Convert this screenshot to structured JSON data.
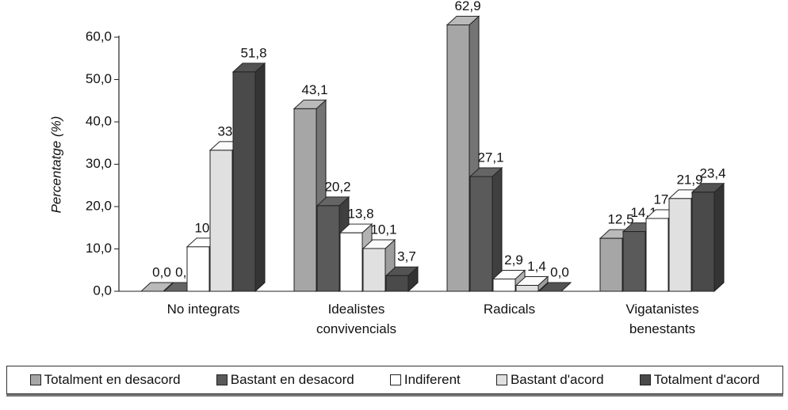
{
  "chart_data": {
    "type": "bar3d",
    "y_label": "Percentatge (%)",
    "categories": [
      "No integrats",
      "Idealistes convivencials",
      "Radicals",
      "Vigatanistes benestants"
    ],
    "ylim": [
      0,
      60
    ],
    "yticks": [
      {
        "value": 0,
        "label": "0,0"
      },
      {
        "value": 10,
        "label": "10,0"
      },
      {
        "value": 20,
        "label": "20,0"
      },
      {
        "value": 30,
        "label": "30,0"
      },
      {
        "value": 40,
        "label": "40,0"
      },
      {
        "value": 50,
        "label": "50,0"
      },
      {
        "value": 60,
        "label": "60,0"
      }
    ],
    "legend": "bottom",
    "series": [
      {
        "name": "Totalment en desacord",
        "color": "#a6a6a6",
        "values": [
          0.0,
          43.1,
          62.9,
          12.5
        ],
        "value_labels": [
          "0,0",
          "43,1",
          "62,9",
          "12,5"
        ]
      },
      {
        "name": "Bastant en desacord",
        "color": "#5a5a5a",
        "values": [
          0.0,
          20.2,
          27.1,
          14.1
        ],
        "value_labels": [
          "0,0",
          "20,2",
          "27,1",
          "14,1"
        ]
      },
      {
        "name": "Indiferent",
        "color": "#ffffff",
        "values": [
          10.5,
          13.8,
          2.9,
          17.2
        ],
        "value_labels": [
          "10,5",
          "13,8",
          "2,9",
          "17,2"
        ]
      },
      {
        "name": "Bastant d'acord",
        "color": "#e0e0e0",
        "values": [
          33.3,
          10.1,
          1.4,
          21.9
        ],
        "value_labels": [
          "33,3",
          "10,1",
          "1,4",
          "21,9"
        ]
      },
      {
        "name": "Totalment d'acord",
        "color": "#4a4a4a",
        "values": [
          51.8,
          3.7,
          0.0,
          23.4
        ],
        "value_labels": [
          "51,8",
          "3,7",
          "0,0",
          "23,4"
        ]
      }
    ]
  }
}
